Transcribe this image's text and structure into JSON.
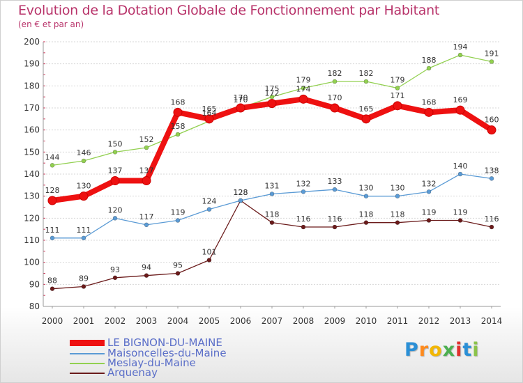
{
  "header": {
    "title": "Evolution de la Dotation Globale de Fonctionnement par Habitant",
    "subtitle": "(en € et par an)"
  },
  "logo": {
    "letters": [
      "P",
      "r",
      "o",
      "x",
      "i",
      "t",
      "i"
    ],
    "colors": [
      "#2a8fd6",
      "#ff8a1c",
      "#f2b705",
      "#4caf50",
      "#e0312f",
      "#2a8fd6",
      "#8bc34a"
    ]
  },
  "chart_data": {
    "type": "line",
    "title": "Evolution de la Dotation Globale de Fonctionnement par Habitant",
    "subtitle": "(en € et par an)",
    "xlabel": "",
    "ylabel": "",
    "x": [
      2000,
      2001,
      2002,
      2003,
      2004,
      2005,
      2006,
      2007,
      2008,
      2009,
      2010,
      2011,
      2012,
      2013,
      2014
    ],
    "x_tick_labels": [
      "2000",
      "2001",
      "2002",
      "2003",
      "2004",
      "2005",
      "2006",
      "2007",
      "2008",
      "2009",
      "2010",
      "2011",
      "2012",
      "2013",
      "2014"
    ],
    "ylim": [
      80,
      200
    ],
    "y_ticks": [
      80,
      90,
      100,
      110,
      120,
      130,
      140,
      150,
      160,
      170,
      180,
      190,
      200
    ],
    "y_tick_labels": [
      "80",
      "90",
      "100",
      "110",
      "120",
      "130",
      "140",
      "150",
      "160",
      "170",
      "180",
      "190",
      "200"
    ],
    "grid": "horizontal",
    "legend_position": "bottom-left",
    "series": [
      {
        "name": "LE BIGNON-DU-MAINE",
        "color": "#ee1111",
        "values": [
          128,
          130,
          137,
          137,
          168,
          165,
          170,
          172,
          174,
          170,
          165,
          171,
          168,
          169,
          160
        ],
        "labels": [
          "128",
          "130",
          "137",
          "137",
          "168",
          "165",
          "170",
          "172",
          "174",
          "170",
          "165",
          "171",
          "168",
          "169",
          "160"
        ]
      },
      {
        "name": "Maisoncelles-du-Maine",
        "color": "#5b9bd5",
        "values": [
          111,
          111,
          120,
          117,
          119,
          124,
          128,
          131,
          132,
          133,
          130,
          130,
          132,
          140,
          138
        ],
        "labels": [
          "111",
          "111",
          "120",
          "117",
          "119",
          "124",
          "128",
          "131",
          "132",
          "133",
          "130",
          "130",
          "132",
          "140",
          "138"
        ]
      },
      {
        "name": "Meslay-du-Maine",
        "color": "#92d050",
        "values": [
          144,
          146,
          150,
          152,
          158,
          164,
          170,
          175,
          179,
          182,
          182,
          179,
          188,
          194,
          191
        ],
        "labels": [
          "144",
          "146",
          "150",
          "152",
          "158",
          "164",
          "170",
          "175",
          "179",
          "182",
          "182",
          "179",
          "188",
          "194",
          "191"
        ]
      },
      {
        "name": "Arquenay",
        "color": "#6b1b1b",
        "values": [
          88,
          89,
          93,
          94,
          95,
          101,
          128,
          118,
          116,
          116,
          118,
          118,
          119,
          119,
          116
        ],
        "labels": [
          "88",
          "89",
          "93",
          "94",
          "95",
          "101",
          "128",
          "118",
          "116",
          "116",
          "118",
          "118",
          "119",
          "119",
          "116"
        ]
      }
    ]
  }
}
